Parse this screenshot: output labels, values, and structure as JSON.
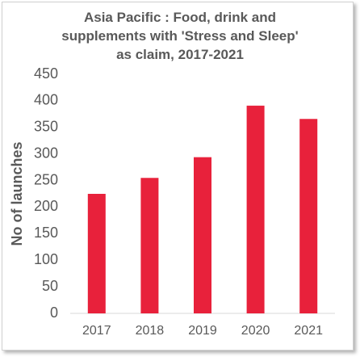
{
  "chart_data": {
    "type": "bar",
    "title": "Asia Pacific : Food, drink and supplements with 'Stress and Sleep' as claim, 2017-2021",
    "y_label": "No of launches",
    "categories": [
      "2017",
      "2018",
      "2019",
      "2020",
      "2021"
    ],
    "values": [
      225,
      255,
      294,
      391,
      366
    ],
    "color": "#e8213b",
    "ylim": [
      0,
      450
    ],
    "yticks": [
      0,
      50,
      100,
      150,
      200,
      250,
      300,
      350,
      400,
      450
    ],
    "grid": false
  }
}
